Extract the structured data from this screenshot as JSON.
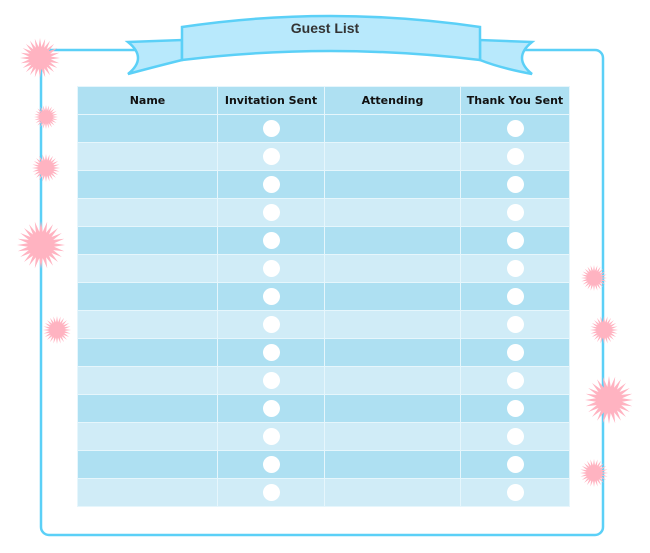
{
  "title": "Guest List",
  "columns": [
    "Name",
    "Invitation Sent",
    "Attending",
    "Thank You Sent"
  ],
  "row_count": 14,
  "colors": {
    "frame": "#5bd0f7",
    "ribbon": "#b8e9fc",
    "header": "#aee0f2",
    "row_light": "#d0ecf7",
    "row_dark": "#aee0f2",
    "starburst": "#ffb3c1"
  }
}
